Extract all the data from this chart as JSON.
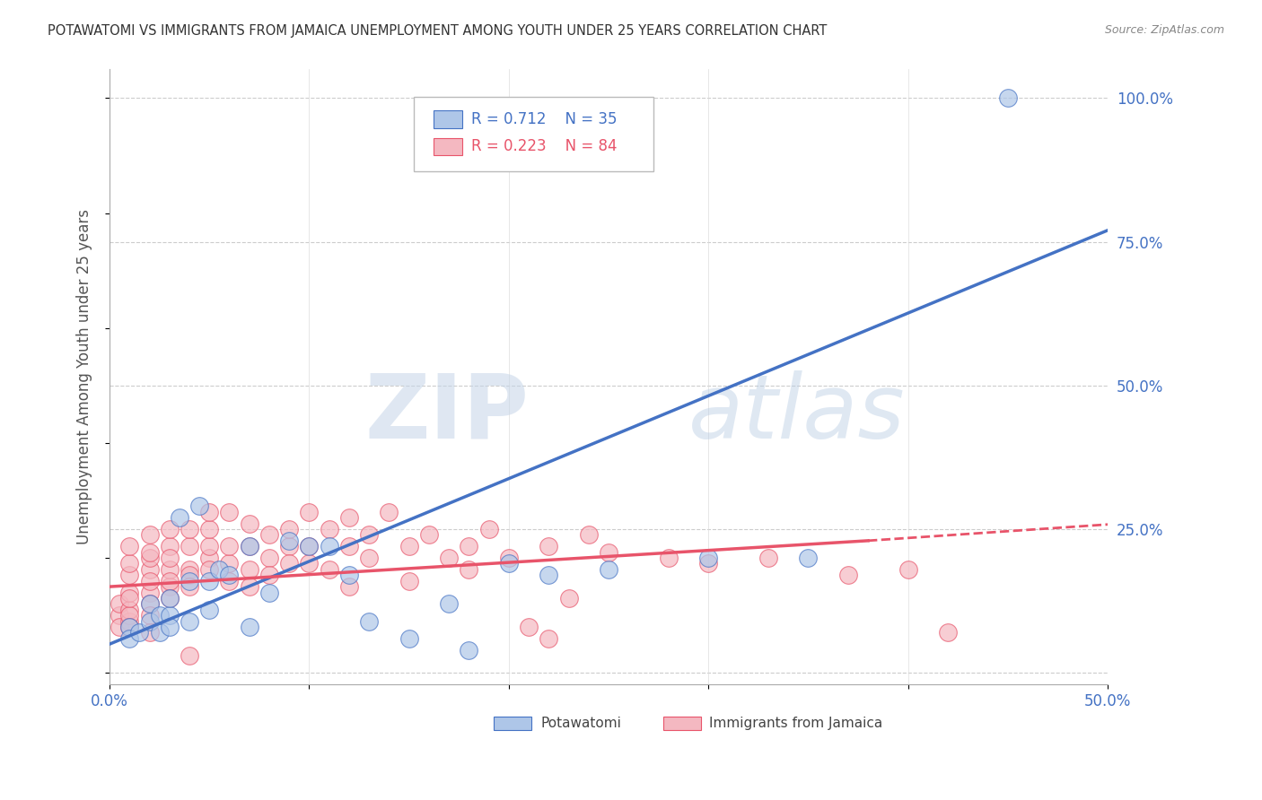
{
  "title": "POTAWATOMI VS IMMIGRANTS FROM JAMAICA UNEMPLOYMENT AMONG YOUTH UNDER 25 YEARS CORRELATION CHART",
  "source": "Source: ZipAtlas.com",
  "ylabel": "Unemployment Among Youth under 25 years",
  "xlim": [
    0.0,
    50.0
  ],
  "ylim": [
    -2.0,
    105.0
  ],
  "xticks": [
    0.0,
    10.0,
    20.0,
    30.0,
    40.0,
    50.0
  ],
  "xticklabels": [
    "0.0%",
    "",
    "",
    "",
    "",
    "50.0%"
  ],
  "ytick_positions_right": [
    0.0,
    25.0,
    50.0,
    75.0,
    100.0
  ],
  "ytick_labels_right": [
    "",
    "25.0%",
    "50.0%",
    "75.0%",
    "100.0%"
  ],
  "blue_R": 0.712,
  "blue_N": 35,
  "pink_R": 0.223,
  "pink_N": 84,
  "watermark_zip": "ZIP",
  "watermark_atlas": "atlas",
  "blue_color": "#aec6e8",
  "blue_line_color": "#4472c4",
  "pink_color": "#f4b8c1",
  "pink_line_color": "#e8546a",
  "legend_label_blue": "Potawatomi",
  "legend_label_pink": "Immigrants from Jamaica",
  "blue_scatter": [
    [
      1.0,
      8.0
    ],
    [
      1.0,
      6.0
    ],
    [
      1.5,
      7.0
    ],
    [
      2.0,
      9.0
    ],
    [
      2.0,
      12.0
    ],
    [
      2.5,
      7.0
    ],
    [
      2.5,
      10.0
    ],
    [
      3.0,
      10.0
    ],
    [
      3.0,
      8.0
    ],
    [
      3.0,
      13.0
    ],
    [
      3.5,
      27.0
    ],
    [
      4.0,
      16.0
    ],
    [
      4.0,
      9.0
    ],
    [
      4.5,
      29.0
    ],
    [
      5.0,
      16.0
    ],
    [
      5.0,
      11.0
    ],
    [
      5.5,
      18.0
    ],
    [
      6.0,
      17.0
    ],
    [
      7.0,
      22.0
    ],
    [
      7.0,
      8.0
    ],
    [
      8.0,
      14.0
    ],
    [
      9.0,
      23.0
    ],
    [
      10.0,
      22.0
    ],
    [
      11.0,
      22.0
    ],
    [
      12.0,
      17.0
    ],
    [
      13.0,
      9.0
    ],
    [
      15.0,
      6.0
    ],
    [
      17.0,
      12.0
    ],
    [
      18.0,
      4.0
    ],
    [
      20.0,
      19.0
    ],
    [
      22.0,
      17.0
    ],
    [
      25.0,
      18.0
    ],
    [
      30.0,
      20.0
    ],
    [
      35.0,
      20.0
    ],
    [
      45.0,
      100.0
    ]
  ],
  "pink_scatter": [
    [
      0.5,
      10.0
    ],
    [
      0.5,
      8.0
    ],
    [
      0.5,
      12.0
    ],
    [
      1.0,
      9.0
    ],
    [
      1.0,
      11.0
    ],
    [
      1.0,
      14.0
    ],
    [
      1.0,
      10.0
    ],
    [
      1.0,
      8.0
    ],
    [
      1.0,
      13.0
    ],
    [
      1.0,
      17.0
    ],
    [
      1.0,
      19.0
    ],
    [
      1.0,
      22.0
    ],
    [
      2.0,
      14.0
    ],
    [
      2.0,
      12.0
    ],
    [
      2.0,
      18.0
    ],
    [
      2.0,
      16.0
    ],
    [
      2.0,
      20.0
    ],
    [
      2.0,
      10.0
    ],
    [
      2.0,
      24.0
    ],
    [
      2.0,
      21.0
    ],
    [
      2.0,
      7.0
    ],
    [
      3.0,
      15.0
    ],
    [
      3.0,
      18.0
    ],
    [
      3.0,
      22.0
    ],
    [
      3.0,
      20.0
    ],
    [
      3.0,
      25.0
    ],
    [
      3.0,
      16.0
    ],
    [
      3.0,
      13.0
    ],
    [
      4.0,
      18.0
    ],
    [
      4.0,
      22.0
    ],
    [
      4.0,
      25.0
    ],
    [
      4.0,
      17.0
    ],
    [
      4.0,
      15.0
    ],
    [
      4.0,
      3.0
    ],
    [
      5.0,
      20.0
    ],
    [
      5.0,
      22.0
    ],
    [
      5.0,
      18.0
    ],
    [
      5.0,
      25.0
    ],
    [
      5.0,
      28.0
    ],
    [
      6.0,
      16.0
    ],
    [
      6.0,
      19.0
    ],
    [
      6.0,
      22.0
    ],
    [
      6.0,
      28.0
    ],
    [
      7.0,
      18.0
    ],
    [
      7.0,
      22.0
    ],
    [
      7.0,
      26.0
    ],
    [
      7.0,
      15.0
    ],
    [
      8.0,
      20.0
    ],
    [
      8.0,
      24.0
    ],
    [
      8.0,
      17.0
    ],
    [
      9.0,
      22.0
    ],
    [
      9.0,
      19.0
    ],
    [
      9.0,
      25.0
    ],
    [
      10.0,
      28.0
    ],
    [
      10.0,
      22.0
    ],
    [
      10.0,
      19.0
    ],
    [
      11.0,
      25.0
    ],
    [
      11.0,
      18.0
    ],
    [
      12.0,
      22.0
    ],
    [
      12.0,
      27.0
    ],
    [
      12.0,
      15.0
    ],
    [
      13.0,
      20.0
    ],
    [
      13.0,
      24.0
    ],
    [
      14.0,
      28.0
    ],
    [
      15.0,
      22.0
    ],
    [
      15.0,
      16.0
    ],
    [
      16.0,
      24.0
    ],
    [
      17.0,
      20.0
    ],
    [
      18.0,
      18.0
    ],
    [
      18.0,
      22.0
    ],
    [
      19.0,
      25.0
    ],
    [
      20.0,
      20.0
    ],
    [
      21.0,
      8.0
    ],
    [
      22.0,
      22.0
    ],
    [
      22.0,
      6.0
    ],
    [
      23.0,
      13.0
    ],
    [
      24.0,
      24.0
    ],
    [
      25.0,
      21.0
    ],
    [
      28.0,
      20.0
    ],
    [
      30.0,
      19.0
    ],
    [
      33.0,
      20.0
    ],
    [
      37.0,
      17.0
    ],
    [
      40.0,
      18.0
    ],
    [
      42.0,
      7.0
    ]
  ],
  "blue_trendline": [
    [
      0.0,
      5.0
    ],
    [
      50.0,
      77.0
    ]
  ],
  "pink_trendline_solid": [
    [
      0.0,
      15.0
    ],
    [
      38.0,
      23.0
    ]
  ],
  "pink_trendline_dashed": [
    [
      38.0,
      23.0
    ],
    [
      55.0,
      27.0
    ]
  ]
}
